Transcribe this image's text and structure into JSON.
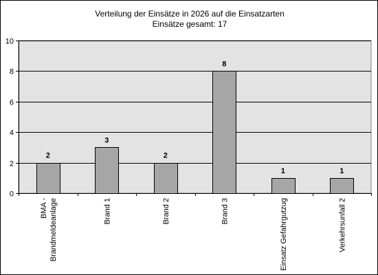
{
  "chart_data": {
    "type": "bar",
    "title": "Verteilung der Einsätze in 2026 auf die Einsatzarten",
    "subtitle": "Einsätze gesamt: 17",
    "categories": [
      [
        "BMA -",
        "Brandmeldeanlage"
      ],
      [
        "Brand 1"
      ],
      [
        "Brand 2"
      ],
      [
        "Brand 3"
      ],
      [
        "Einsatz Gefahrgutzug"
      ],
      [
        "Verkehrsunfall 2"
      ]
    ],
    "values": [
      2,
      3,
      2,
      8,
      1,
      1
    ],
    "data_labels": [
      "2",
      "3",
      "2",
      "8",
      "1",
      "1"
    ],
    "ylim": [
      0,
      10
    ],
    "yticks": [
      0,
      2,
      4,
      6,
      8,
      10
    ],
    "xlabel": "",
    "ylabel": "",
    "grid": true,
    "legend": "none",
    "colors": {
      "plot_background": "#e3e3e3",
      "bar_fill": "#a6a6a6",
      "bar_stroke": "#000000",
      "gridline": "#000000"
    }
  }
}
